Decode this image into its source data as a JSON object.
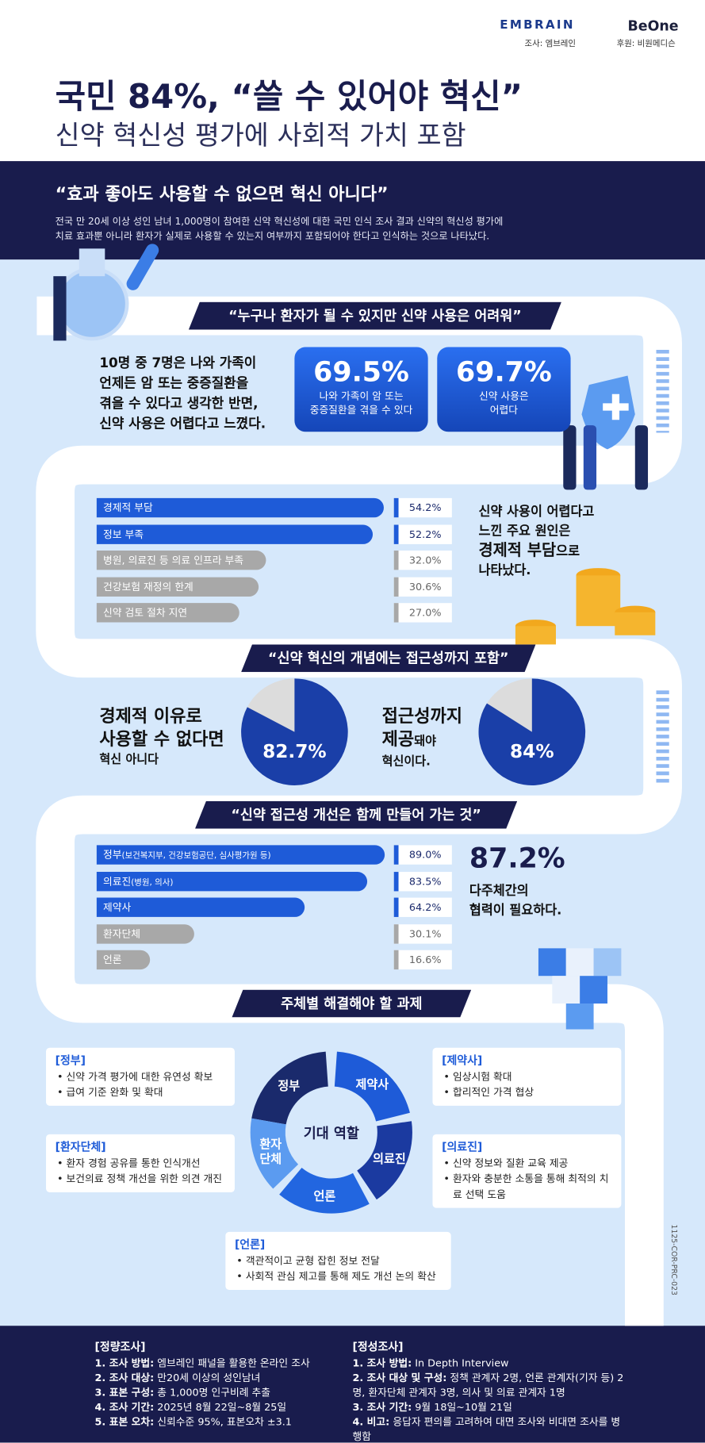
{
  "header": {
    "logos": [
      "EMBRAIN",
      "BeOne"
    ],
    "credits": [
      "조사: 엠브레인",
      "후원: 비원메디슨"
    ],
    "title": "국민 84%, “쓸 수 있어야 혁신”",
    "subtitle": "신약 혁신성 평가에 사회적 가치 포함"
  },
  "intro": {
    "quote": "“효과 좋아도 사용할 수 없으면 혁신 아니다”",
    "text": [
      "전국 만 20세 이상 성인 남녀 1,000명이 참여한 신약 혁신성에 대한 국민 인식 조사 결과 신약의 혁신성 평가에",
      "치료 효과뿐 아니라 환자가 실제로 사용할 수 있는지 여부까지 포함되어야 한다고 인식하는 것으로 나타났다."
    ]
  },
  "section1": {
    "banner": "“누구나 환자가 될 수 있지만 신약 사용은 어려워”",
    "text": [
      "10명 중 7명은 나와 가족이",
      "언제든 암 또는 중증질환을",
      "겪을 수 있다고 생각한 반면,",
      "신약 사용은 어렵다고 느꼈다."
    ],
    "stats": [
      {
        "value": "69.5%",
        "caption": [
          "나와 가족이 암 또는",
          "중증질환을 겪을 수 있다"
        ]
      },
      {
        "value": "69.7%",
        "caption": [
          "신약 사용은",
          "어렵다"
        ]
      }
    ]
  },
  "reasons": {
    "type": "bar",
    "categories": [
      "경제적 부담",
      "정보 부족",
      "병원, 의료진 등 의료 인프라 부족",
      "건강보험 재정의 한계",
      "신약 검토 절차 지연"
    ],
    "values": [
      54.2,
      52.2,
      32.0,
      30.6,
      27.0
    ],
    "value_labels": [
      "54.2%",
      "52.2%",
      "32.0%",
      "30.6%",
      "27.0%"
    ],
    "colors": [
      "#1e5bd8",
      "#1e5bd8",
      "#a8a8a8",
      "#a8a8a8",
      "#a8a8a8"
    ],
    "conclusion": {
      "lines": [
        "신약 사용이 어렵다고",
        "느낀 주요 원인은"
      ],
      "highlight": "경제적 부담",
      "suffix": "으로",
      "last": "나타났다."
    }
  },
  "section2": {
    "banner": "“신약 혁신의 개념에는 접근성까지 포함”",
    "pies": [
      {
        "type": "pie",
        "lines": [
          "경제적 이유로",
          "사용할 수 없다면"
        ],
        "sub": "혁신 아니다",
        "value": 82.7,
        "value_label": "82.7%"
      },
      {
        "type": "pie",
        "lines": [
          "접근성까지"
        ],
        "emph": "제공",
        "small": "돼야",
        "sub": "혁신이다.",
        "value": 84,
        "value_label": "84%"
      }
    ]
  },
  "section3": {
    "banner": "“신약 접근성 개선은 함께 만들어 가는 것”",
    "stat": "87.2%",
    "stat_caption": [
      "다주체간의",
      "협력이 필요하다."
    ]
  },
  "partners": {
    "type": "bar",
    "categories": [
      "정부",
      "의료진",
      "제약사",
      "환자단체",
      "언론"
    ],
    "notes": [
      "(보건복지부, 건강보험공단, 심사평가원 등)",
      "(병원, 의사)",
      null,
      null,
      null
    ],
    "values": [
      89.0,
      83.5,
      64.2,
      30.1,
      16.6
    ],
    "value_labels": [
      "89.0%",
      "83.5%",
      "64.2%",
      "30.1%",
      "16.6%"
    ],
    "colors": [
      "#1e5bd8",
      "#1e5bd8",
      "#1e5bd8",
      "#a8a8a8",
      "#a8a8a8"
    ]
  },
  "diagram": {
    "banner": "주체별 해결해야 할 과제",
    "center": "기대 역할",
    "segments": [
      {
        "label": [
          "정부"
        ],
        "color": "#1a2a6c"
      },
      {
        "label": [
          "제약사"
        ],
        "color": "#1e5bd8"
      },
      {
        "label": [
          "의료진"
        ],
        "color": "#1b3aa0"
      },
      {
        "label": [
          "언론"
        ],
        "color": "#2266e0"
      },
      {
        "label": [
          "환자",
          "단체"
        ],
        "color": "#5b9bf0"
      }
    ],
    "tasks": [
      {
        "title": "[정부]",
        "items": [
          "신약 가격 평가에 대한 유연성 확보",
          "급여 기준 완화 및 확대"
        ]
      },
      {
        "title": "[제약사]",
        "items": [
          "임상시험 확대",
          "합리적인 가격 협상"
        ]
      },
      {
        "title": "[환자단체]",
        "items": [
          "환자 경험 공유를 통한 인식개선",
          "보건의료 정책 개선을 위한 의견 개진"
        ]
      },
      {
        "title": "[의료진]",
        "items": [
          "신약 정보와 질환 교육 제공",
          "환자와 충분한 소통을 통해 최적의 치료 선택 도움"
        ]
      },
      {
        "title": "[언론]",
        "items": [
          "객관적이고 균형 잡힌 정보 전달",
          "사회적 관심 제고를 통해 제도 개선 논의 확산"
        ]
      }
    ]
  },
  "code": "1125-COR-PRC-023",
  "footer": [
    {
      "title": "[정량조사]",
      "items": [
        {
          "label": "1. 조사 방법:",
          "text": "엠브레인 패널을 활용한 온라인 조사"
        },
        {
          "label": "2. 조사 대상:",
          "text": "만20세 이상의 성인남녀"
        },
        {
          "label": "3. 표본 구성:",
          "text": "총 1,000명 인구비례 추출"
        },
        {
          "label": "4. 조사 기간:",
          "text": "2025년 8월 22일~8월 25일"
        },
        {
          "label": "5. 표본 오차:",
          "text": "신뢰수준 95%, 표본오차 ±3.1"
        }
      ]
    },
    {
      "title": "[정성조사]",
      "items": [
        {
          "label": "1. 조사 방법:",
          "text": "In Depth Interview"
        },
        {
          "label": "2. 조사 대상 및 구성:",
          "text": "정책 관계자 2명, 언론 관계자(기자 등) 2명, 환자단체 관계자 3명, 의사 및 의료 관계자 1명"
        },
        {
          "label": "3. 조사 기간:",
          "text": "9월 18일~10월 21일"
        },
        {
          "label": "4. 비고:",
          "text": "응답자 편의를 고려하여 대면 조사와 비대면 조사를 병행함"
        }
      ]
    }
  ]
}
